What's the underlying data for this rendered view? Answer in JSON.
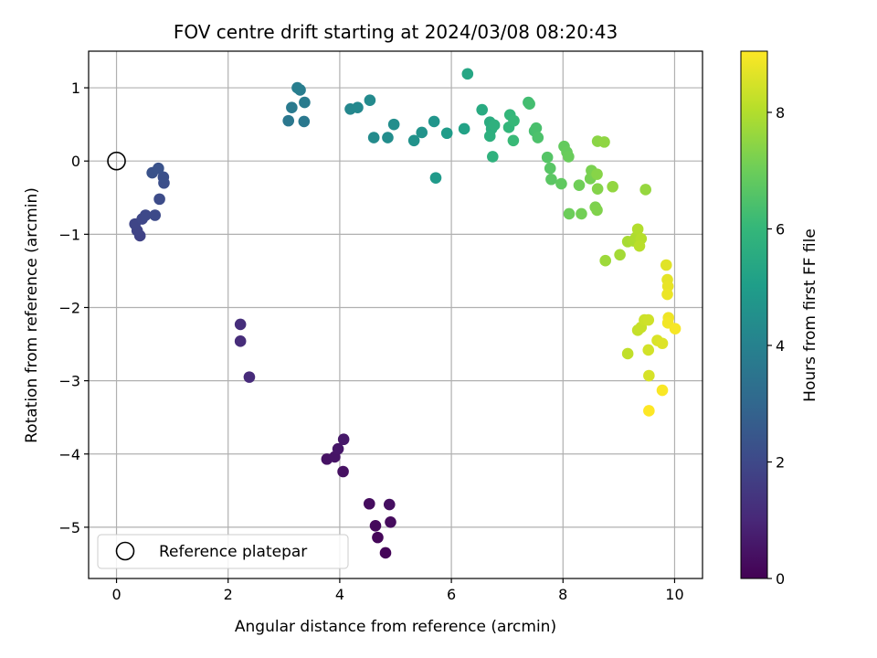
{
  "chart_data": {
    "type": "scatter",
    "title": "FOV centre drift starting at 2024/03/08 08:20:43",
    "xlabel": "Angular distance from reference (arcmin)",
    "ylabel": "Rotation from reference (arcmin)",
    "xlim": [
      -0.5,
      10.5
    ],
    "ylim": [
      -5.7,
      1.5
    ],
    "xticks": [
      0,
      2,
      4,
      6,
      8,
      10
    ],
    "xtick_labels": [
      "0",
      "2",
      "4",
      "6",
      "8",
      "10"
    ],
    "yticks": [
      1,
      0,
      -1,
      -2,
      -3,
      -4,
      -5
    ],
    "ytick_labels": [
      "1",
      "0",
      "−1",
      "−2",
      "−3",
      "−4",
      "−5"
    ],
    "grid": true,
    "colormap": "viridis",
    "colormap_stops": [
      "#440154",
      "#482878",
      "#3e4989",
      "#31688e",
      "#26828e",
      "#1f9e89",
      "#35b779",
      "#6ece58",
      "#b5de2b",
      "#fde725"
    ],
    "colorbar": {
      "label": "Hours from first FF file",
      "range": [
        0,
        9.05
      ],
      "ticks": [
        0,
        2,
        4,
        6,
        8
      ],
      "tick_labels": [
        "0",
        "2",
        "4",
        "6",
        "8"
      ]
    },
    "reference_point": {
      "x": 0,
      "y": 0
    },
    "legend": {
      "position": "lower-left",
      "entries": [
        "Reference platepar"
      ]
    },
    "points": [
      {
        "x": 4.82,
        "y": -5.35,
        "h": 0.1
      },
      {
        "x": 4.68,
        "y": -5.14,
        "h": 0.15
      },
      {
        "x": 4.64,
        "y": -4.98,
        "h": 0.2
      },
      {
        "x": 4.91,
        "y": -4.93,
        "h": 0.25
      },
      {
        "x": 4.53,
        "y": -4.68,
        "h": 0.3
      },
      {
        "x": 4.89,
        "y": -4.69,
        "h": 0.35
      },
      {
        "x": 4.06,
        "y": -4.24,
        "h": 0.4
      },
      {
        "x": 3.77,
        "y": -4.07,
        "h": 0.45
      },
      {
        "x": 3.91,
        "y": -4.04,
        "h": 0.5
      },
      {
        "x": 3.97,
        "y": -3.93,
        "h": 0.55
      },
      {
        "x": 4.07,
        "y": -3.8,
        "h": 0.6
      },
      {
        "x": 2.38,
        "y": -2.95,
        "h": 1.1
      },
      {
        "x": 2.22,
        "y": -2.46,
        "h": 1.15
      },
      {
        "x": 2.22,
        "y": -2.23,
        "h": 1.2
      },
      {
        "x": 0.42,
        "y": -1.02,
        "h": 1.8
      },
      {
        "x": 0.37,
        "y": -0.95,
        "h": 1.85
      },
      {
        "x": 0.33,
        "y": -0.86,
        "h": 1.9
      },
      {
        "x": 0.46,
        "y": -0.79,
        "h": 1.95
      },
      {
        "x": 0.52,
        "y": -0.74,
        "h": 2.0
      },
      {
        "x": 0.69,
        "y": -0.74,
        "h": 2.05
      },
      {
        "x": 0.77,
        "y": -0.52,
        "h": 2.1
      },
      {
        "x": 0.85,
        "y": -0.3,
        "h": 2.2
      },
      {
        "x": 0.84,
        "y": -0.22,
        "h": 2.25
      },
      {
        "x": 0.64,
        "y": -0.16,
        "h": 2.3
      },
      {
        "x": 0.75,
        "y": -0.1,
        "h": 2.35
      },
      {
        "x": 3.08,
        "y": 0.55,
        "h": 3.6
      },
      {
        "x": 3.36,
        "y": 0.54,
        "h": 3.65
      },
      {
        "x": 3.14,
        "y": 0.73,
        "h": 3.7
      },
      {
        "x": 3.37,
        "y": 0.8,
        "h": 3.75
      },
      {
        "x": 3.29,
        "y": 0.97,
        "h": 3.8
      },
      {
        "x": 3.24,
        "y": 1.0,
        "h": 3.85
      },
      {
        "x": 4.19,
        "y": 0.71,
        "h": 4.2
      },
      {
        "x": 4.32,
        "y": 0.73,
        "h": 4.25
      },
      {
        "x": 4.54,
        "y": 0.83,
        "h": 4.3
      },
      {
        "x": 4.61,
        "y": 0.32,
        "h": 4.35
      },
      {
        "x": 4.86,
        "y": 0.32,
        "h": 4.4
      },
      {
        "x": 4.97,
        "y": 0.5,
        "h": 4.45
      },
      {
        "x": 5.33,
        "y": 0.28,
        "h": 4.6
      },
      {
        "x": 5.47,
        "y": 0.39,
        "h": 4.65
      },
      {
        "x": 5.69,
        "y": 0.54,
        "h": 4.7
      },
      {
        "x": 5.72,
        "y": -0.23,
        "h": 4.9
      },
      {
        "x": 5.92,
        "y": 0.38,
        "h": 4.95
      },
      {
        "x": 6.23,
        "y": 0.44,
        "h": 5.2
      },
      {
        "x": 6.29,
        "y": 1.19,
        "h": 5.35
      },
      {
        "x": 6.55,
        "y": 0.7,
        "h": 5.5
      },
      {
        "x": 6.69,
        "y": 0.53,
        "h": 5.6
      },
      {
        "x": 6.72,
        "y": 0.44,
        "h": 5.65
      },
      {
        "x": 6.69,
        "y": 0.34,
        "h": 5.7
      },
      {
        "x": 6.77,
        "y": 0.49,
        "h": 5.75
      },
      {
        "x": 6.74,
        "y": 0.06,
        "h": 5.8
      },
      {
        "x": 7.03,
        "y": 0.46,
        "h": 5.95
      },
      {
        "x": 7.05,
        "y": 0.63,
        "h": 6.0
      },
      {
        "x": 7.12,
        "y": 0.55,
        "h": 6.05
      },
      {
        "x": 7.11,
        "y": 0.28,
        "h": 6.1
      },
      {
        "x": 7.38,
        "y": 0.8,
        "h": 6.25
      },
      {
        "x": 7.4,
        "y": 0.78,
        "h": 6.3
      },
      {
        "x": 7.49,
        "y": 0.41,
        "h": 6.35
      },
      {
        "x": 7.52,
        "y": 0.45,
        "h": 6.4
      },
      {
        "x": 7.55,
        "y": 0.32,
        "h": 6.45
      },
      {
        "x": 7.72,
        "y": 0.05,
        "h": 6.6
      },
      {
        "x": 7.77,
        "y": -0.1,
        "h": 6.65
      },
      {
        "x": 7.79,
        "y": -0.25,
        "h": 6.7
      },
      {
        "x": 7.97,
        "y": -0.31,
        "h": 6.8
      },
      {
        "x": 8.02,
        "y": 0.2,
        "h": 6.85
      },
      {
        "x": 8.07,
        "y": 0.12,
        "h": 6.9
      },
      {
        "x": 8.1,
        "y": 0.06,
        "h": 6.95
      },
      {
        "x": 8.11,
        "y": -0.72,
        "h": 7.0
      },
      {
        "x": 8.29,
        "y": -0.33,
        "h": 7.05
      },
      {
        "x": 8.33,
        "y": -0.72,
        "h": 7.1
      },
      {
        "x": 8.49,
        "y": -0.24,
        "h": 7.15
      },
      {
        "x": 8.51,
        "y": -0.13,
        "h": 7.2
      },
      {
        "x": 8.58,
        "y": -0.63,
        "h": 7.25
      },
      {
        "x": 8.61,
        "y": -0.67,
        "h": 7.3
      },
      {
        "x": 8.62,
        "y": -0.38,
        "h": 7.35
      },
      {
        "x": 8.61,
        "y": -0.18,
        "h": 7.4
      },
      {
        "x": 8.62,
        "y": 0.27,
        "h": 7.45
      },
      {
        "x": 8.74,
        "y": 0.26,
        "h": 7.5
      },
      {
        "x": 8.89,
        "y": -0.35,
        "h": 7.55
      },
      {
        "x": 8.76,
        "y": -1.36,
        "h": 7.7
      },
      {
        "x": 9.02,
        "y": -1.28,
        "h": 7.8
      },
      {
        "x": 9.16,
        "y": -1.1,
        "h": 7.85
      },
      {
        "x": 9.26,
        "y": -1.09,
        "h": 7.9
      },
      {
        "x": 9.31,
        "y": -1.04,
        "h": 7.95
      },
      {
        "x": 9.34,
        "y": -0.93,
        "h": 8.0
      },
      {
        "x": 9.4,
        "y": -1.06,
        "h": 8.05
      },
      {
        "x": 9.37,
        "y": -1.16,
        "h": 8.1
      },
      {
        "x": 9.48,
        "y": -0.39,
        "h": 7.6
      },
      {
        "x": 9.16,
        "y": -2.63,
        "h": 8.2
      },
      {
        "x": 9.34,
        "y": -2.31,
        "h": 8.25
      },
      {
        "x": 9.4,
        "y": -2.27,
        "h": 8.3
      },
      {
        "x": 9.46,
        "y": -2.17,
        "h": 8.35
      },
      {
        "x": 9.53,
        "y": -2.17,
        "h": 8.4
      },
      {
        "x": 9.53,
        "y": -2.58,
        "h": 8.45
      },
      {
        "x": 9.54,
        "y": -2.93,
        "h": 8.5
      },
      {
        "x": 9.69,
        "y": -2.45,
        "h": 8.55
      },
      {
        "x": 9.78,
        "y": -2.49,
        "h": 8.6
      },
      {
        "x": 9.85,
        "y": -1.42,
        "h": 8.65
      },
      {
        "x": 9.87,
        "y": -1.62,
        "h": 8.7
      },
      {
        "x": 9.88,
        "y": -1.71,
        "h": 8.75
      },
      {
        "x": 9.87,
        "y": -1.82,
        "h": 8.8
      },
      {
        "x": 9.89,
        "y": -2.14,
        "h": 8.85
      },
      {
        "x": 9.88,
        "y": -2.21,
        "h": 8.9
      },
      {
        "x": 10.01,
        "y": -2.29,
        "h": 8.95
      },
      {
        "x": 9.78,
        "y": -3.13,
        "h": 9.0
      },
      {
        "x": 9.54,
        "y": -3.41,
        "h": 9.05
      }
    ]
  }
}
